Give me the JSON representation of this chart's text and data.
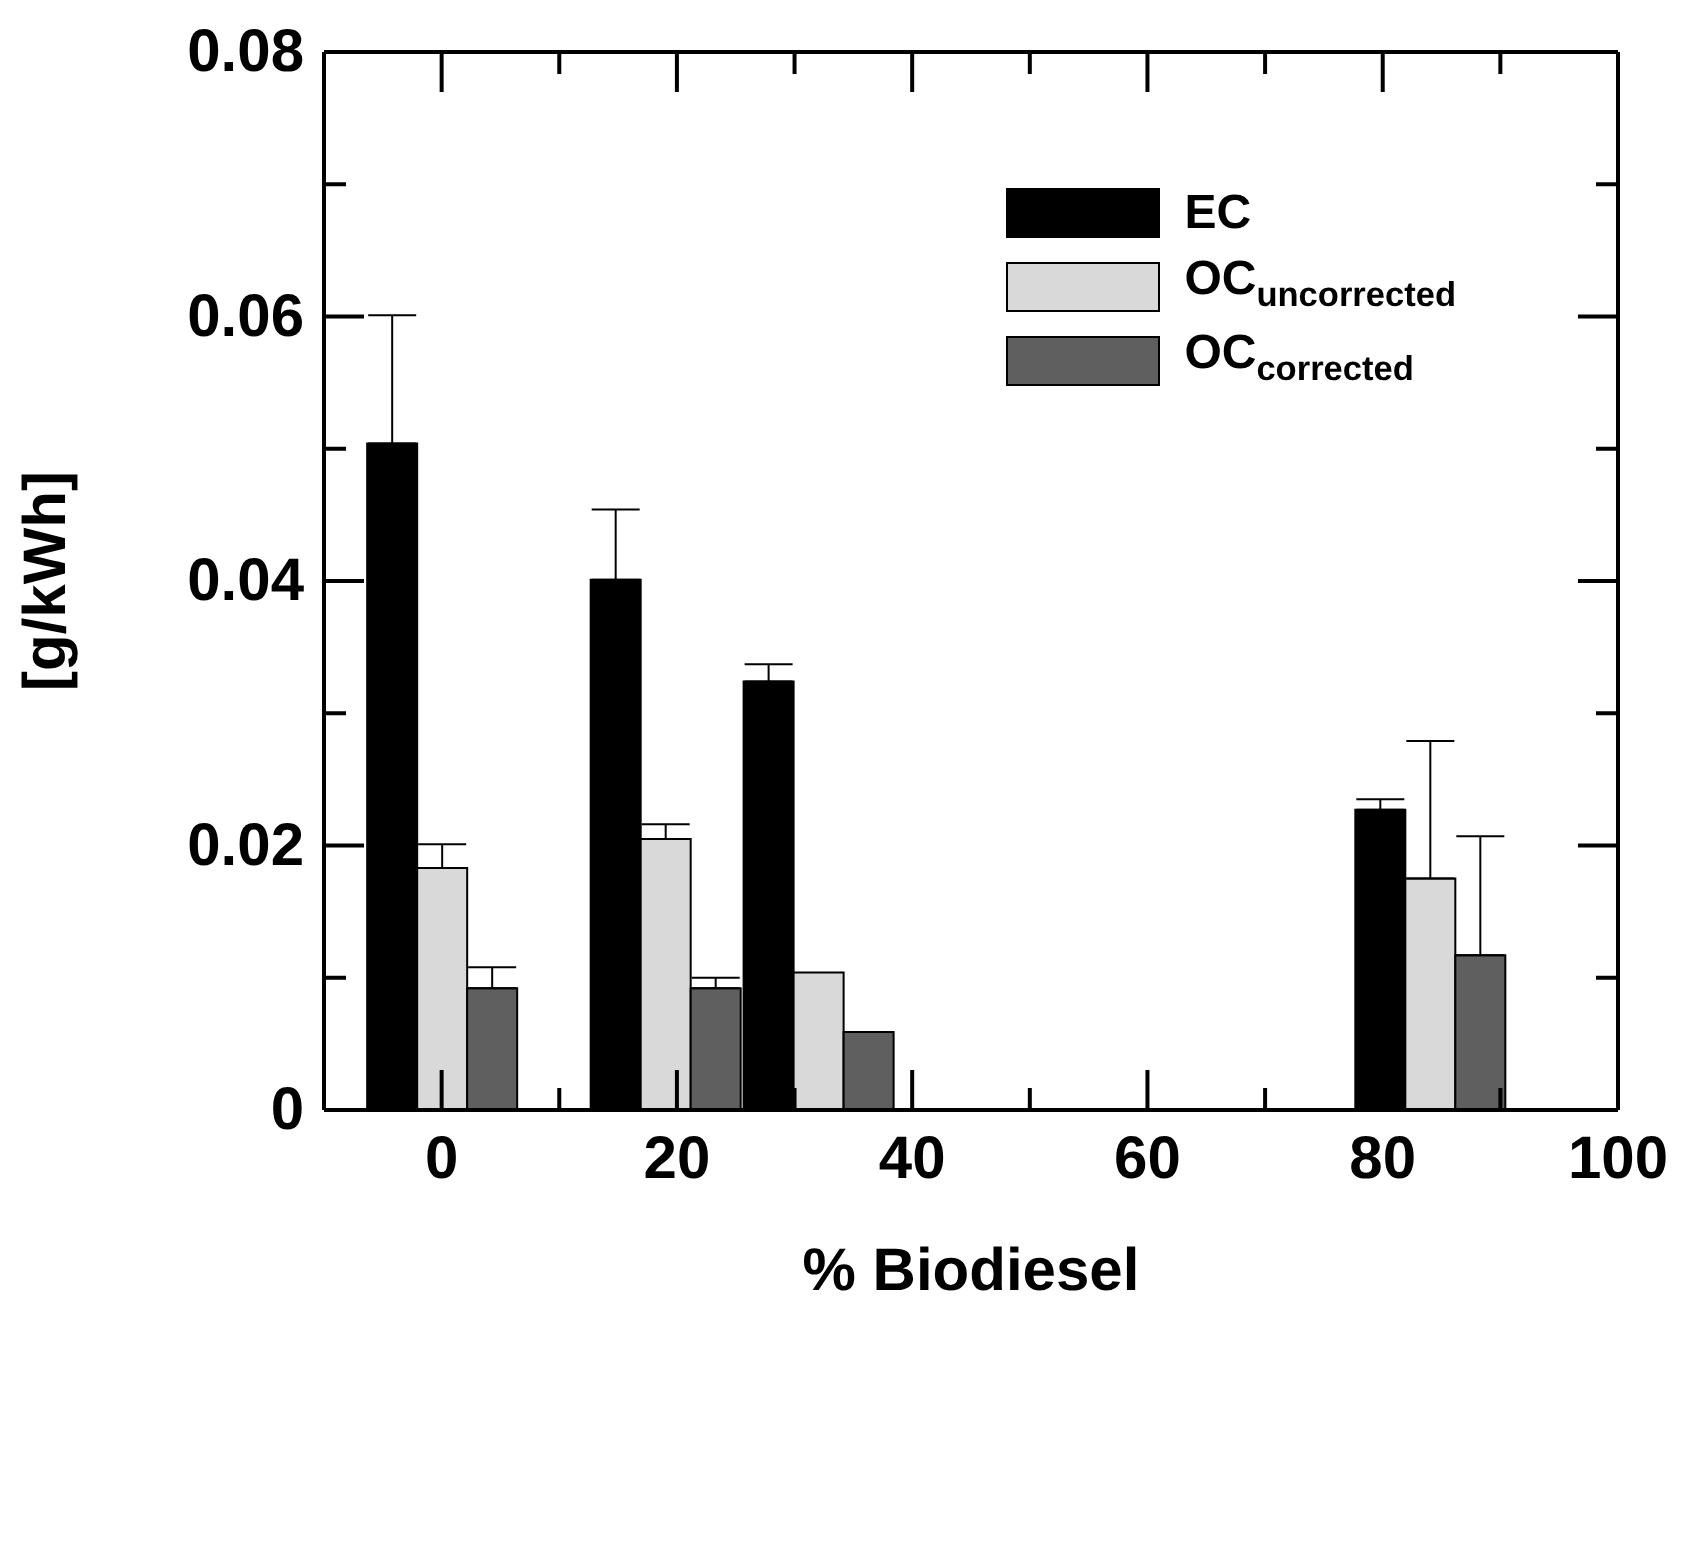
{
  "chart_data": {
    "type": "bar",
    "xlabel": "% Biodiesel",
    "ylabel": "[g/kWh]",
    "x": [
      0,
      19,
      32,
      84
    ],
    "series": [
      {
        "name": "EC",
        "color": "#000000",
        "values": [
          0.0504,
          0.0401,
          0.0324,
          0.0227
        ],
        "errors": [
          [
            0.0504,
            0.0601
          ],
          [
            0.0401,
            0.0454
          ],
          [
            0.0324,
            0.0337
          ],
          [
            0.0227,
            0.0235
          ]
        ]
      },
      {
        "name": "OC$_{uncorrected}$",
        "color": "#d9d9d9",
        "values": [
          0.0183,
          0.0205,
          0.0104,
          0.0175
        ],
        "errors": [
          [
            0.0183,
            0.0201
          ],
          [
            0.0205,
            0.0216
          ],
          null,
          [
            0.0175,
            0.0279
          ]
        ]
      },
      {
        "name": "OC$_{corrected}$",
        "color": "#5f5f5f",
        "values": [
          0.0092,
          0.0092,
          0.0059,
          0.0117
        ],
        "errors": [
          [
            0.0092,
            0.0108
          ],
          [
            0.0092,
            0.01
          ],
          null,
          [
            0.0117,
            0.0207
          ]
        ]
      }
    ],
    "xlim": [
      -10,
      100
    ],
    "xticks": [
      0,
      {
        "value": 10,
        "label": null
      },
      20,
      {
        "value": 30,
        "label": null
      },
      40,
      {
        "value": 50,
        "label": null
      },
      60,
      {
        "value": 70,
        "label": null
      },
      80,
      {
        "value": 90,
        "label": null
      },
      100
    ],
    "ylim": [
      0,
      0.08
    ],
    "yticks": [
      0,
      {
        "value": 0.01,
        "label": null
      },
      0.02,
      {
        "value": 0.03,
        "label": null
      },
      0.04,
      {
        "value": 0.05,
        "label": null
      },
      0.06,
      {
        "value": 0.07,
        "label": null
      },
      0.08
    ],
    "legend": "top right",
    "grid": false
  }
}
